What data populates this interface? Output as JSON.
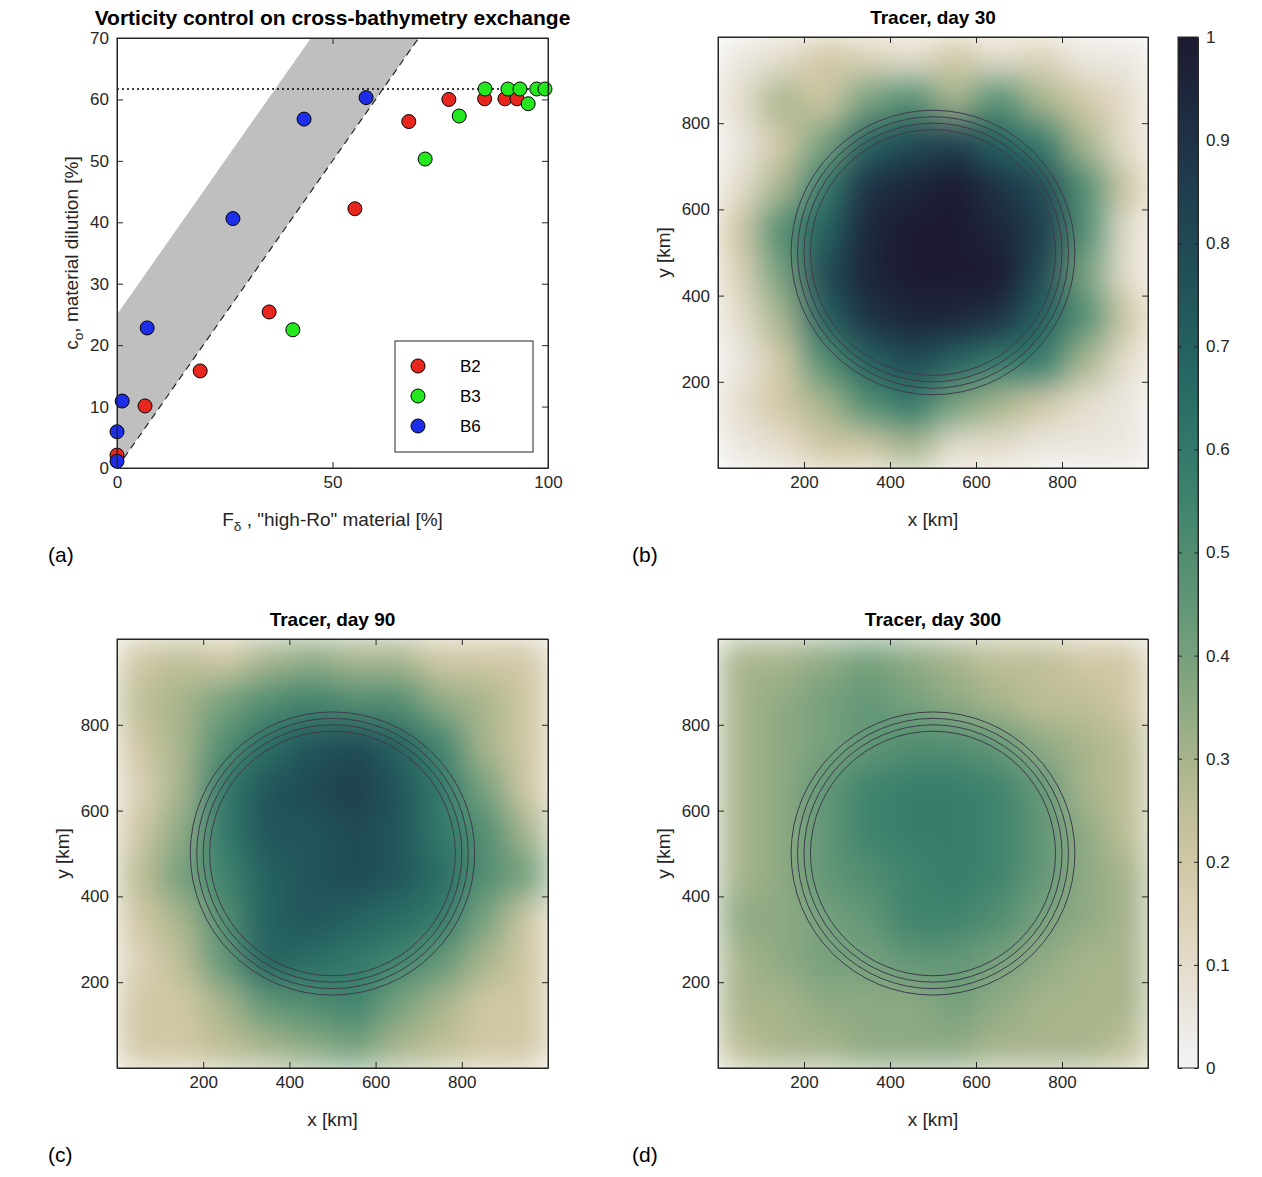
{
  "chart_data": [
    {
      "type": "scatter",
      "panel": "(a)",
      "title": "Vorticity control on cross-bathymetry exchange",
      "xlabel": {
        "text": "F",
        "sub": "δ",
        "rest": " , \"high-Ro\" material [%]"
      },
      "ylabel": {
        "text": "c",
        "sub": "o",
        "rest": ", material dilution [%]"
      },
      "xlim": [
        0,
        100
      ],
      "ylim": [
        0,
        70
      ],
      "xticks": [
        0,
        50,
        100
      ],
      "yticks": [
        0,
        10,
        20,
        30,
        40,
        50,
        60,
        70
      ],
      "marker": "circle",
      "legend": "lower right",
      "series": [
        {
          "name": "B2",
          "color": "#e8261e",
          "x": [
            0,
            6.5,
            19.3,
            35.3,
            55.2,
            67.7,
            77,
            85.3,
            90,
            92.8
          ],
          "values": [
            2.1,
            10.1,
            15.8,
            25.4,
            42.2,
            56.4,
            60,
            60.1,
            60.1,
            60.1
          ]
        },
        {
          "name": "B3",
          "color": "#23e81e",
          "x": [
            40.8,
            71.5,
            79.4,
            85.4,
            90.7,
            93.5,
            95.4,
            97.4,
            99.3
          ],
          "values": [
            22.5,
            50.3,
            57.3,
            61.7,
            61.7,
            61.7,
            59.3,
            61.7,
            61.7
          ]
        },
        {
          "name": "B6",
          "color": "#1e2ee8",
          "x": [
            0,
            0,
            1.2,
            7,
            26.9,
            43.4,
            57.8
          ],
          "values": [
            1.1,
            5.9,
            10.9,
            22.8,
            40.6,
            56.8,
            60.3
          ]
        }
      ],
      "band": {
        "x": [
          0,
          100
        ],
        "lower": [
          0,
          100
        ],
        "upper": [
          25,
          125
        ]
      },
      "hline": 61.7
    },
    {
      "type": "heatmap",
      "panel": "(b)",
      "title": "Tracer, day 30",
      "xlabel": "x [km]",
      "ylabel": "y [km]",
      "xlim": [
        0,
        1000
      ],
      "ylim": [
        0,
        1000
      ],
      "xticks": [
        200,
        400,
        600,
        800
      ],
      "yticks": [
        200,
        400,
        600,
        800
      ],
      "x": [
        50,
        150,
        250,
        350,
        450,
        550,
        650,
        750,
        850,
        950
      ],
      "y": [
        950,
        850,
        750,
        650,
        550,
        450,
        350,
        250,
        150,
        50
      ],
      "values": [
        [
          0.05,
          0.1,
          0.2,
          0.15,
          0.1,
          0.2,
          0.1,
          0.15,
          0.05,
          0.05
        ],
        [
          0.1,
          0.3,
          0.2,
          0.4,
          0.5,
          0.3,
          0.5,
          0.3,
          0.2,
          0.1
        ],
        [
          0.05,
          0.2,
          0.4,
          0.7,
          0.8,
          0.85,
          0.7,
          0.6,
          0.3,
          0.1
        ],
        [
          0.1,
          0.3,
          0.6,
          0.9,
          0.95,
          1,
          0.9,
          0.8,
          0.5,
          0.2
        ],
        [
          0.2,
          0.5,
          0.7,
          0.95,
          1,
          1,
          0.95,
          0.85,
          0.5,
          0.1
        ],
        [
          0.15,
          0.4,
          0.8,
          0.95,
          1,
          1,
          1,
          0.8,
          0.4,
          0.1
        ],
        [
          0.1,
          0.3,
          0.7,
          0.9,
          0.95,
          0.95,
          0.9,
          0.7,
          0.5,
          0.2
        ],
        [
          0.05,
          0.2,
          0.5,
          0.7,
          0.8,
          0.7,
          0.6,
          0.6,
          0.3,
          0.1
        ],
        [
          0.1,
          0.2,
          0.3,
          0.5,
          0.6,
          0.4,
          0.3,
          0.2,
          0.1,
          0.05
        ],
        [
          0.05,
          0.1,
          0.2,
          0.2,
          0.3,
          0.1,
          0.1,
          0.05,
          0.05,
          0.05
        ]
      ],
      "contours": {
        "center_x": 500,
        "center_y": 500,
        "radii": [
          285,
          300,
          315,
          330
        ]
      }
    },
    {
      "type": "heatmap",
      "panel": "(c)",
      "title": "Tracer, day 90",
      "xlabel": "x [km]",
      "ylabel": "y [km]",
      "xlim": [
        0,
        1000
      ],
      "ylim": [
        0,
        1000
      ],
      "xticks": [
        200,
        400,
        600,
        800
      ],
      "yticks": [
        200,
        400,
        600,
        800
      ],
      "x": [
        50,
        150,
        250,
        350,
        450,
        550,
        650,
        750,
        850,
        950
      ],
      "y": [
        950,
        850,
        750,
        650,
        550,
        450,
        350,
        250,
        150,
        50
      ],
      "values": [
        [
          0.2,
          0.25,
          0.2,
          0.3,
          0.35,
          0.3,
          0.3,
          0.2,
          0.2,
          0.2
        ],
        [
          0.25,
          0.3,
          0.4,
          0.5,
          0.55,
          0.5,
          0.5,
          0.35,
          0.3,
          0.2
        ],
        [
          0.2,
          0.3,
          0.5,
          0.65,
          0.75,
          0.8,
          0.7,
          0.55,
          0.3,
          0.2
        ],
        [
          0.15,
          0.3,
          0.6,
          0.75,
          0.8,
          0.85,
          0.75,
          0.6,
          0.4,
          0.2
        ],
        [
          0.2,
          0.35,
          0.6,
          0.75,
          0.75,
          0.8,
          0.75,
          0.6,
          0.5,
          0.3
        ],
        [
          0.25,
          0.4,
          0.55,
          0.7,
          0.75,
          0.8,
          0.75,
          0.65,
          0.5,
          0.4
        ],
        [
          0.2,
          0.3,
          0.5,
          0.7,
          0.75,
          0.7,
          0.65,
          0.6,
          0.4,
          0.2
        ],
        [
          0.15,
          0.25,
          0.45,
          0.7,
          0.65,
          0.6,
          0.55,
          0.45,
          0.3,
          0.2
        ],
        [
          0.2,
          0.2,
          0.3,
          0.45,
          0.5,
          0.55,
          0.4,
          0.3,
          0.2,
          0.2
        ],
        [
          0.2,
          0.2,
          0.25,
          0.3,
          0.35,
          0.4,
          0.3,
          0.25,
          0.2,
          0.2
        ]
      ],
      "contours": {
        "center_x": 500,
        "center_y": 500,
        "radii": [
          285,
          300,
          315,
          330
        ]
      }
    },
    {
      "type": "heatmap",
      "panel": "(d)",
      "title": "Tracer, day 300",
      "xlabel": "x [km]",
      "ylabel": "y [km]",
      "xlim": [
        0,
        1000
      ],
      "ylim": [
        0,
        1000
      ],
      "xticks": [
        200,
        400,
        600,
        800
      ],
      "yticks": [
        200,
        400,
        600,
        800
      ],
      "x": [
        50,
        150,
        250,
        350,
        450,
        550,
        650,
        750,
        850,
        950
      ],
      "y": [
        950,
        850,
        750,
        650,
        550,
        450,
        350,
        250,
        150,
        50
      ],
      "values": [
        [
          0.3,
          0.3,
          0.35,
          0.4,
          0.35,
          0.3,
          0.25,
          0.25,
          0.2,
          0.2
        ],
        [
          0.3,
          0.35,
          0.4,
          0.45,
          0.4,
          0.35,
          0.3,
          0.25,
          0.25,
          0.2
        ],
        [
          0.3,
          0.35,
          0.4,
          0.45,
          0.5,
          0.5,
          0.45,
          0.35,
          0.3,
          0.25
        ],
        [
          0.3,
          0.35,
          0.45,
          0.55,
          0.58,
          0.58,
          0.55,
          0.45,
          0.3,
          0.25
        ],
        [
          0.3,
          0.35,
          0.45,
          0.55,
          0.58,
          0.58,
          0.55,
          0.45,
          0.35,
          0.25
        ],
        [
          0.3,
          0.35,
          0.45,
          0.5,
          0.55,
          0.58,
          0.55,
          0.45,
          0.35,
          0.3
        ],
        [
          0.35,
          0.35,
          0.4,
          0.45,
          0.55,
          0.55,
          0.5,
          0.4,
          0.35,
          0.3
        ],
        [
          0.3,
          0.35,
          0.4,
          0.4,
          0.45,
          0.45,
          0.4,
          0.35,
          0.3,
          0.3
        ],
        [
          0.3,
          0.3,
          0.35,
          0.35,
          0.35,
          0.4,
          0.35,
          0.3,
          0.3,
          0.3
        ],
        [
          0.25,
          0.3,
          0.3,
          0.35,
          0.35,
          0.35,
          0.3,
          0.3,
          0.3,
          0.25
        ]
      ],
      "contours": {
        "center_x": 500,
        "center_y": 500,
        "radii": [
          285,
          300,
          315,
          330
        ]
      },
      "colorbar": {
        "range": [
          0,
          1
        ],
        "ticks": [
          0,
          0.1,
          0.2,
          0.3,
          0.4,
          0.5,
          0.6,
          0.7,
          0.8,
          0.9,
          1
        ]
      }
    }
  ]
}
